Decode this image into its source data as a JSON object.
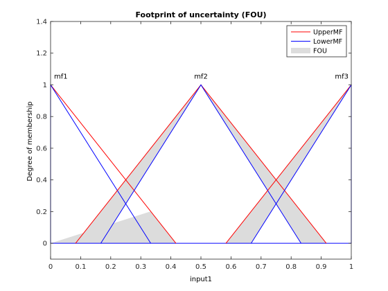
{
  "chart_data": {
    "type": "line",
    "title": "Footprint of uncertainty (FOU)",
    "xlabel": "input1",
    "ylabel": "Degree of membership",
    "xlim": [
      0,
      1
    ],
    "ylim": [
      -0.1,
      1.4
    ],
    "xticks": [
      0,
      0.1,
      0.2,
      0.3,
      0.4,
      0.5,
      0.6,
      0.7,
      0.8,
      0.9,
      1
    ],
    "xtick_labels": [
      "0",
      "0.1",
      "0.2",
      "0.3",
      "0.4",
      "0.5",
      "0.6",
      "0.7",
      "0.8",
      "0.9",
      "1"
    ],
    "yticks": [
      0,
      0.2,
      0.4,
      0.6,
      0.8,
      1,
      1.2,
      1.4
    ],
    "ytick_labels": [
      "0",
      "0.2",
      "0.4",
      "0.6",
      "0.8",
      "1",
      "1.2",
      "1.4"
    ],
    "grid": false,
    "legend_position": "top-right",
    "legend": [
      {
        "label": "UpperMF",
        "color": "#ff0000",
        "kind": "line"
      },
      {
        "label": "LowerMF",
        "color": "#0000ff",
        "kind": "line"
      },
      {
        "label": "FOU",
        "color": "#dddddd",
        "kind": "patch"
      }
    ],
    "colors": {
      "upper": "#ff0000",
      "lower": "#0000ff",
      "fou": "#dcdcdc"
    },
    "membership_functions": [
      {
        "name": "mf1",
        "upper": {
          "x": [
            0,
            0,
            0.417
          ],
          "y": [
            0,
            1,
            0
          ]
        },
        "lower": {
          "x": [
            0,
            0,
            0.333
          ],
          "y": [
            0,
            1,
            0
          ]
        }
      },
      {
        "name": "mf2",
        "upper": {
          "x": [
            0.083,
            0.5,
            0.917
          ],
          "y": [
            0,
            1,
            0
          ]
        },
        "lower": {
          "x": [
            0.167,
            0.5,
            0.833
          ],
          "y": [
            0,
            1,
            0
          ]
        }
      },
      {
        "name": "mf3",
        "upper": {
          "x": [
            0.583,
            1,
            1
          ],
          "y": [
            0,
            1,
            0
          ]
        },
        "lower": {
          "x": [
            0.667,
            1,
            1
          ],
          "y": [
            0,
            1,
            0
          ]
        }
      }
    ]
  }
}
